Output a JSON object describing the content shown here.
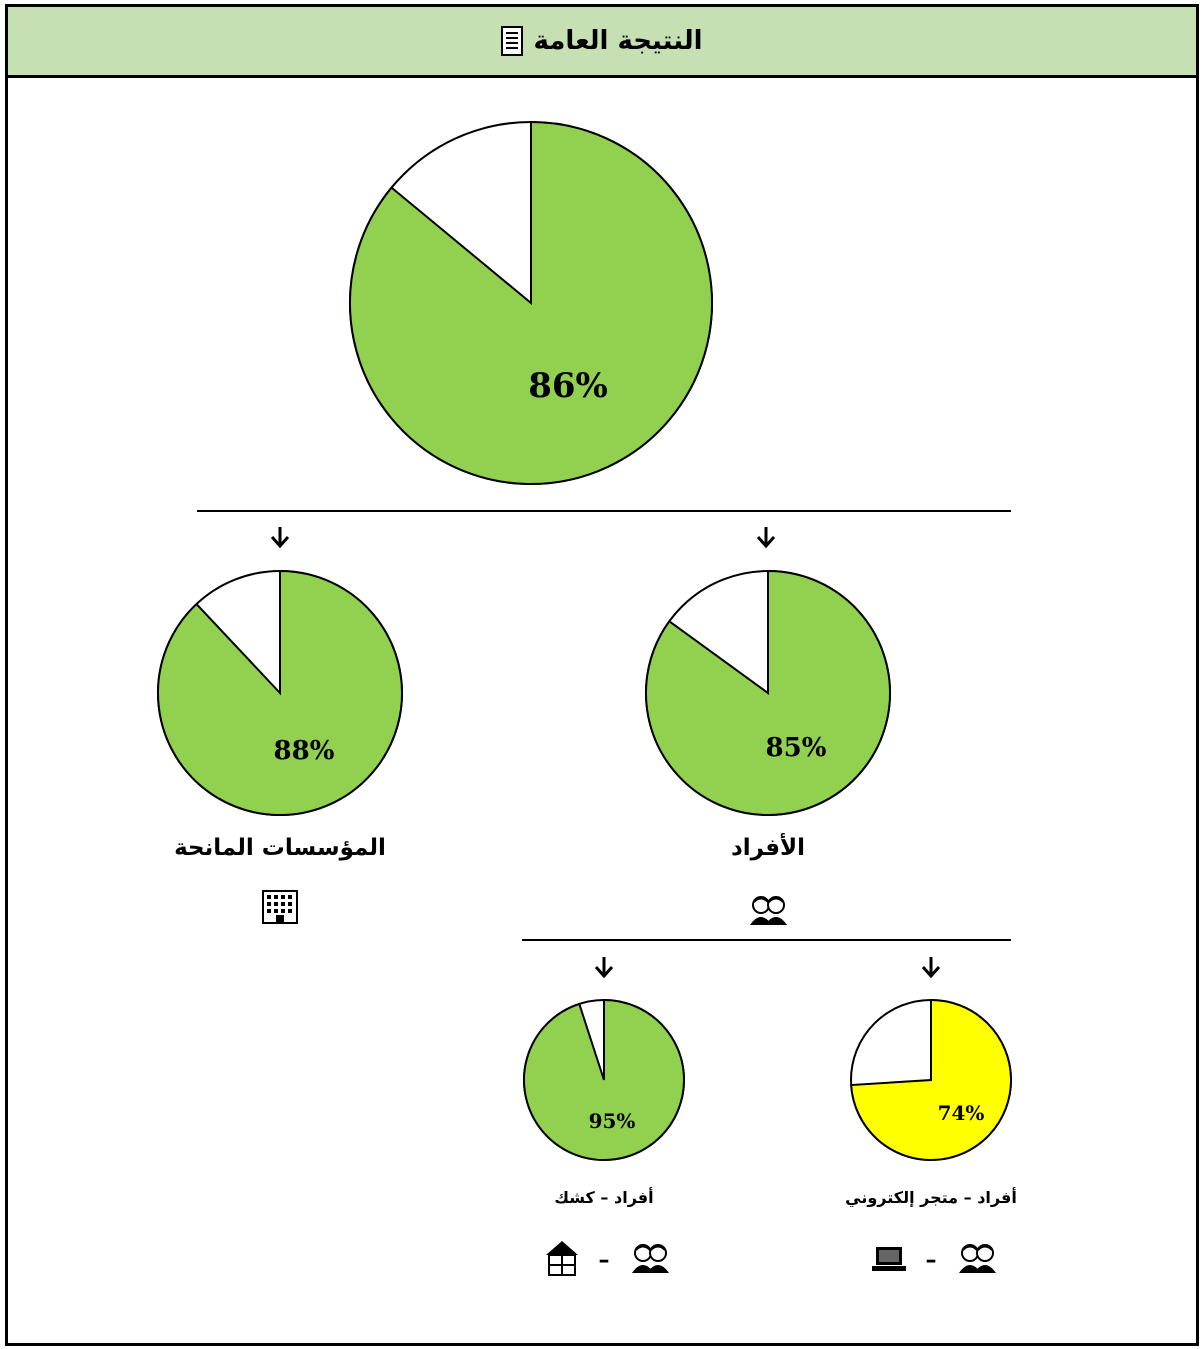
{
  "header": {
    "title": "النتيجة العامة",
    "icon": "document-icon"
  },
  "colors": {
    "green": "#92d050",
    "yellow": "#ffff00",
    "header_bg": "#c6e0b4"
  },
  "chart_data": [
    {
      "type": "pie",
      "node": "overall",
      "value": 86,
      "value_label": "86%",
      "label": "",
      "color": "#92d050"
    },
    {
      "type": "pie",
      "node": "institutions",
      "value": 88,
      "value_label": "88%",
      "label": "المؤسسات المانحة",
      "icons": [
        "building-icon"
      ],
      "color": "#92d050"
    },
    {
      "type": "pie",
      "node": "individuals",
      "value": 85,
      "value_label": "85%",
      "label": "الأفراد",
      "icons": [
        "people-icon"
      ],
      "color": "#92d050"
    },
    {
      "type": "pie",
      "node": "individuals-kiosk",
      "value": 95,
      "value_label": "95%",
      "label": "أفراد – كشك",
      "icons": [
        "people-icon",
        "kiosk-icon"
      ],
      "separator": "–",
      "color": "#92d050"
    },
    {
      "type": "pie",
      "node": "individuals-eshop",
      "value": 74,
      "value_label": "74%",
      "label": "أفراد – متجر إلكتروني",
      "icons": [
        "people-icon",
        "laptop-icon"
      ],
      "separator": "–",
      "color": "#ffff00"
    }
  ]
}
